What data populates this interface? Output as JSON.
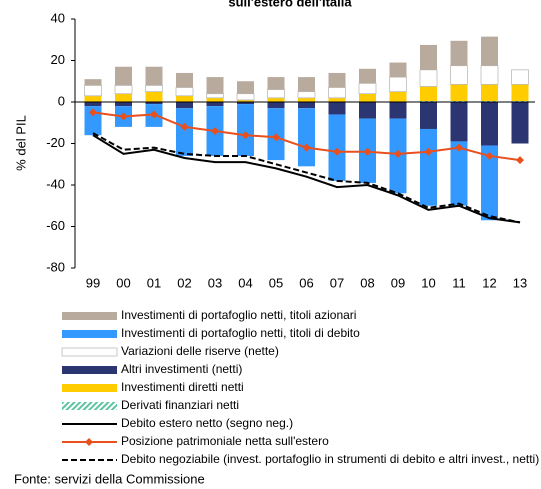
{
  "chart_data": {
    "type": "bar",
    "title": "sull'estero dell'Italia",
    "y_label": "% del PIL",
    "source": "Fonte: servizi della Commissione",
    "categories": [
      "99",
      "00",
      "01",
      "02",
      "03",
      "04",
      "05",
      "06",
      "07",
      "08",
      "09",
      "10",
      "11",
      "12",
      "13"
    ],
    "ylim": [
      -80,
      40
    ],
    "yticks": [
      -80,
      -60,
      -40,
      -20,
      0,
      20,
      40
    ],
    "series": [
      {
        "name": "Investimenti di portafoglio netti, titoli azionari",
        "kind": "bar",
        "color": "#b8aa9c",
        "values": [
          3,
          9,
          9,
          7,
          8,
          6,
          6,
          7,
          7,
          7,
          7,
          12,
          12,
          14,
          0
        ]
      },
      {
        "name": "Investimenti di portafoglio netti, titoli di debito",
        "kind": "bar",
        "color": "#3399ff",
        "values": [
          -14,
          -10,
          -11,
          -23,
          -24,
          -25,
          -25,
          -28,
          -32,
          -31,
          -36,
          -37,
          -31,
          -36,
          0
        ]
      },
      {
        "name": "Variazioni delle riserve (nette)",
        "kind": "bar",
        "color": "#ffffff",
        "values": [
          5,
          4,
          3,
          4,
          2,
          3,
          4,
          3,
          5,
          5,
          7,
          8,
          9,
          9,
          7
        ]
      },
      {
        "name": "Altri investimenti (netti)",
        "kind": "bar",
        "color": "#2b3572",
        "values": [
          -2,
          -2,
          -1,
          -3,
          -2,
          -1,
          -3,
          -3,
          -6,
          -8,
          -8,
          -13,
          -19,
          -21,
          -20
        ]
      },
      {
        "name": "Investimenti diretti netti",
        "kind": "bar",
        "color": "#ffcc00",
        "values": [
          3,
          4,
          5,
          3,
          2,
          1,
          2,
          2,
          2,
          4,
          5,
          7,
          8,
          8,
          8
        ]
      },
      {
        "name": "Derivati finanziari netti",
        "kind": "bar",
        "color": "#5cc4a0",
        "hatch": true,
        "values": [
          0,
          0,
          0,
          0,
          0,
          0,
          0,
          0,
          0,
          0,
          0,
          0.5,
          0.5,
          0.5,
          0.5
        ]
      },
      {
        "name": "Debito estero netto (segno neg.)",
        "kind": "line",
        "color": "#000000",
        "values": [
          -16,
          -25,
          -23,
          -27,
          -29,
          -29,
          -32,
          -36,
          -41,
          -40,
          -45,
          -52,
          -50,
          -56,
          -58
        ]
      },
      {
        "name": "Posizione patrimoniale netta sull'estero",
        "kind": "line",
        "color": "#e8501e",
        "marker": true,
        "values": [
          -5,
          -7,
          -6,
          -12,
          -14,
          -16,
          -17,
          -22,
          -24,
          -24,
          -25,
          -24,
          -22,
          -26,
          -28
        ]
      },
      {
        "name": "Debito negoziabile (invest. portafoglio in strumenti di debito e altri invest., netti)",
        "kind": "line",
        "color": "#000000",
        "dashed": true,
        "values": [
          -15,
          -23,
          -22,
          -25,
          -26,
          -26,
          -30,
          -34,
          -38,
          -39,
          -44,
          -51,
          -49,
          -55,
          -58
        ]
      }
    ]
  }
}
